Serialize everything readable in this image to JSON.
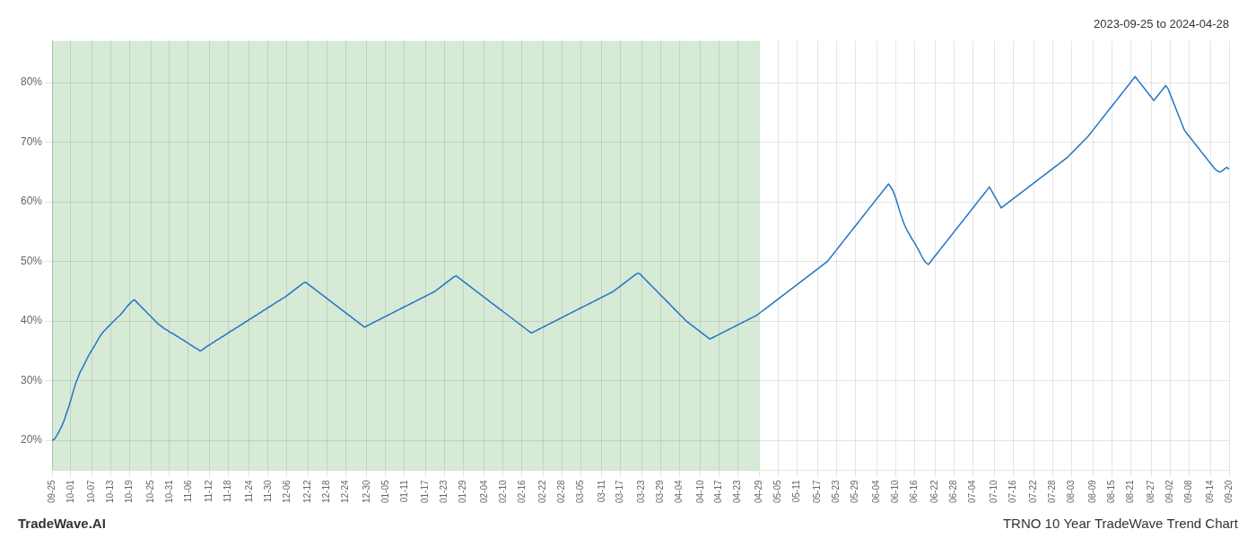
{
  "chart_data": {
    "type": "line",
    "title": "2023-09-25 to 2024-04-28",
    "annotations": [
      "TradeWave.AI",
      "TRNO 10 Year TradeWave Trend Chart"
    ],
    "categories": [
      "09-25",
      null,
      null,
      null,
      null,
      null,
      null,
      null,
      "10-01",
      null,
      null,
      null,
      null,
      null,
      null,
      null,
      null,
      "10-07",
      null,
      null,
      null,
      null,
      null,
      null,
      null,
      "10-13",
      null,
      null,
      null,
      null,
      null,
      null,
      null,
      "10-19",
      null,
      null,
      null,
      null,
      null,
      null,
      null,
      null,
      "10-25",
      null,
      null,
      null,
      null,
      null,
      null,
      null,
      "10-31",
      null,
      null,
      null,
      null,
      null,
      null,
      null,
      "11-06",
      null,
      null,
      null,
      null,
      null,
      null,
      null,
      null,
      "11-12",
      null,
      null,
      null,
      null,
      null,
      null,
      null,
      "11-18",
      null,
      null,
      null,
      null,
      null,
      null,
      null,
      null,
      "11-24",
      null,
      null,
      null,
      null,
      null,
      null,
      null,
      "11-30",
      null,
      null,
      null,
      null,
      null,
      null,
      null,
      "12-06",
      null,
      null,
      null,
      null,
      null,
      null,
      null,
      null,
      "12-12",
      null,
      null,
      null,
      null,
      null,
      null,
      null,
      "12-18",
      null,
      null,
      null,
      null,
      null,
      null,
      null,
      "12-24",
      null,
      null,
      null,
      null,
      null,
      null,
      null,
      null,
      "12-30",
      null,
      null,
      null,
      null,
      null,
      null,
      null,
      "01-05",
      null,
      null,
      null,
      null,
      null,
      null,
      null,
      "01-11",
      null,
      null,
      null,
      null,
      null,
      null,
      null,
      null,
      "01-17",
      null,
      null,
      null,
      null,
      null,
      null,
      null,
      "01-23",
      null,
      null,
      null,
      null,
      null,
      null,
      null,
      "01-29",
      null,
      null,
      null,
      null,
      null,
      null,
      null,
      null,
      "02-04",
      null,
      null,
      null,
      null,
      null,
      null,
      null,
      "02-10",
      null,
      null,
      null,
      null,
      null,
      null,
      null,
      "02-16",
      null,
      null,
      null,
      null,
      null,
      null,
      null,
      null,
      "02-22",
      null,
      null,
      null,
      null,
      null,
      null,
      null,
      "02-28",
      null,
      null,
      null,
      null,
      null,
      null,
      null,
      "03-05",
      null,
      null,
      null,
      null,
      null,
      null,
      null,
      null,
      "03-11",
      null,
      null,
      null,
      null,
      null,
      null,
      null,
      "03-17",
      null,
      null,
      null,
      null,
      null,
      null,
      null,
      null,
      "03-23",
      null,
      null,
      null,
      null,
      null,
      null,
      null,
      "03-29",
      null,
      null,
      null,
      null,
      null,
      null,
      null,
      "04-04",
      null,
      null,
      null,
      null,
      null,
      null,
      null,
      null,
      "04-10",
      null,
      null,
      null,
      null,
      null,
      null,
      null,
      "04-17",
      null,
      null,
      null,
      null,
      null,
      null,
      null,
      "04-23",
      null,
      null,
      null,
      null,
      null,
      null,
      null,
      null,
      "04-29",
      null,
      null,
      null,
      null,
      null,
      null,
      null,
      "05-05",
      null,
      null,
      null,
      null,
      null,
      null,
      null,
      "05-11",
      null,
      null,
      null,
      null,
      null,
      null,
      null,
      null,
      "05-17",
      null,
      null,
      null,
      null,
      null,
      null,
      null,
      "05-23",
      null,
      null,
      null,
      null,
      null,
      null,
      null,
      "05-29",
      null,
      null,
      null,
      null,
      null,
      null,
      null,
      null,
      "06-04",
      null,
      null,
      null,
      null,
      null,
      null,
      null,
      "06-10",
      null,
      null,
      null,
      null,
      null,
      null,
      null,
      "06-16",
      null,
      null,
      null,
      null,
      null,
      null,
      null,
      null,
      "06-22",
      null,
      null,
      null,
      null,
      null,
      null,
      null,
      "06-28",
      null,
      null,
      null,
      null,
      null,
      null,
      null,
      "07-04",
      null,
      null,
      null,
      null,
      null,
      null,
      null,
      null,
      "07-10",
      null,
      null,
      null,
      null,
      null,
      null,
      null,
      "07-16",
      null,
      null,
      null,
      null,
      null,
      null,
      null,
      null,
      "07-22",
      null,
      null,
      null,
      null,
      null,
      null,
      null,
      "07-28",
      null,
      null,
      null,
      null,
      null,
      null,
      null,
      "08-03",
      null,
      null,
      null,
      null,
      null,
      null,
      null,
      null,
      "08-09",
      null,
      null,
      null,
      null,
      null,
      null,
      null,
      "08-15",
      null,
      null,
      null,
      null,
      null,
      null,
      null,
      "08-21",
      null,
      null,
      null,
      null,
      null,
      null,
      null,
      null,
      "08-27",
      null,
      null,
      null,
      null,
      null,
      null,
      null,
      "09-02",
      null,
      null,
      null,
      null,
      null,
      null,
      null,
      "09-08",
      null,
      null,
      null,
      null,
      null,
      null,
      null,
      null,
      "09-14",
      null,
      null,
      null,
      null,
      null,
      null,
      null,
      "09-20"
    ],
    "color": "#2176c7",
    "values": [
      20.0,
      20.2,
      20.8,
      21.5,
      22.3,
      23.2,
      24.4,
      25.5,
      26.8,
      28.2,
      29.5,
      30.5,
      31.5,
      32.2,
      33.0,
      33.8,
      34.5,
      35.2,
      35.8,
      36.5,
      37.2,
      37.8,
      38.3,
      38.7,
      39.1,
      39.5,
      39.9,
      40.3,
      40.7,
      41.0,
      41.5,
      42.0,
      42.5,
      42.9,
      43.3,
      43.6,
      43.2,
      42.8,
      42.4,
      42.0,
      41.6,
      41.2,
      40.8,
      40.4,
      40.0,
      39.6,
      39.3,
      39.0,
      38.7,
      38.5,
      38.2,
      38.0,
      37.8,
      37.5,
      37.3,
      37.0,
      36.8,
      36.5,
      36.3,
      36.0,
      35.8,
      35.5,
      35.3,
      35.0,
      35.2,
      35.5,
      35.8,
      36.0,
      36.3,
      36.5,
      36.8,
      37.0,
      37.3,
      37.5,
      37.8,
      38.0,
      38.3,
      38.5,
      38.8,
      39.0,
      39.3,
      39.5,
      39.8,
      40.0,
      40.3,
      40.5,
      40.8,
      41.0,
      41.3,
      41.5,
      41.8,
      42.0,
      42.3,
      42.5,
      42.8,
      43.0,
      43.3,
      43.5,
      43.8,
      44.0,
      44.3,
      44.6,
      44.9,
      45.2,
      45.5,
      45.8,
      46.1,
      46.4,
      46.5,
      46.2,
      45.9,
      45.6,
      45.3,
      45.0,
      44.7,
      44.4,
      44.1,
      43.8,
      43.5,
      43.2,
      42.9,
      42.6,
      42.3,
      42.0,
      41.7,
      41.4,
      41.1,
      40.8,
      40.5,
      40.2,
      39.9,
      39.6,
      39.3,
      39.0,
      39.2,
      39.4,
      39.6,
      39.8,
      40.0,
      40.2,
      40.4,
      40.6,
      40.8,
      41.0,
      41.2,
      41.4,
      41.6,
      41.8,
      42.0,
      42.2,
      42.4,
      42.6,
      42.8,
      43.0,
      43.2,
      43.4,
      43.6,
      43.8,
      44.0,
      44.2,
      44.4,
      44.6,
      44.8,
      45.0,
      45.3,
      45.6,
      45.9,
      46.2,
      46.5,
      46.8,
      47.1,
      47.4,
      47.6,
      47.3,
      47.0,
      46.7,
      46.4,
      46.1,
      45.8,
      45.5,
      45.2,
      44.9,
      44.6,
      44.3,
      44.0,
      43.7,
      43.4,
      43.1,
      42.8,
      42.5,
      42.2,
      41.9,
      41.6,
      41.3,
      41.0,
      40.7,
      40.4,
      40.1,
      39.8,
      39.5,
      39.2,
      38.9,
      38.6,
      38.3,
      38.0,
      38.2,
      38.4,
      38.6,
      38.8,
      39.0,
      39.2,
      39.4,
      39.6,
      39.8,
      40.0,
      40.2,
      40.4,
      40.6,
      40.8,
      41.0,
      41.2,
      41.4,
      41.6,
      41.8,
      42.0,
      42.2,
      42.4,
      42.6,
      42.8,
      43.0,
      43.2,
      43.4,
      43.6,
      43.8,
      44.0,
      44.2,
      44.4,
      44.6,
      44.8,
      45.0,
      45.3,
      45.6,
      45.9,
      46.2,
      46.5,
      46.8,
      47.1,
      47.4,
      47.7,
      48.0,
      48.0,
      47.6,
      47.2,
      46.8,
      46.4,
      46.0,
      45.6,
      45.2,
      44.8,
      44.4,
      44.0,
      43.6,
      43.2,
      42.8,
      42.4,
      42.0,
      41.6,
      41.2,
      40.8,
      40.4,
      40.0,
      39.7,
      39.4,
      39.1,
      38.8,
      38.5,
      38.2,
      37.9,
      37.6,
      37.3,
      37.0,
      37.2,
      37.4,
      37.6,
      37.8,
      38.0,
      38.2,
      38.4,
      38.6,
      38.8,
      39.0,
      39.2,
      39.4,
      39.6,
      39.8,
      40.0,
      40.2,
      40.4,
      40.6,
      40.8,
      41.0,
      41.3,
      41.6,
      41.9,
      42.2,
      42.5,
      42.8,
      43.1,
      43.4,
      43.7,
      44.0,
      44.3,
      44.6,
      44.9,
      45.2,
      45.5,
      45.8,
      46.1,
      46.4,
      46.7,
      47.0,
      47.3,
      47.6,
      47.9,
      48.2,
      48.5,
      48.8,
      49.1,
      49.4,
      49.7,
      50.0,
      50.5,
      51.0,
      51.5,
      52.0,
      52.5,
      53.0,
      53.5,
      54.0,
      54.5,
      55.0,
      55.5,
      56.0,
      56.5,
      57.0,
      57.5,
      58.0,
      58.5,
      59.0,
      59.5,
      60.0,
      60.5,
      61.0,
      61.5,
      62.0,
      62.5,
      63.0,
      62.5,
      61.8,
      60.8,
      59.5,
      58.2,
      57.0,
      56.0,
      55.2,
      54.5,
      53.8,
      53.2,
      52.5,
      51.8,
      51.0,
      50.3,
      49.8,
      49.5,
      50.0,
      50.5,
      51.0,
      51.5,
      52.0,
      52.5,
      53.0,
      53.5,
      54.0,
      54.5,
      55.0,
      55.5,
      56.0,
      56.5,
      57.0,
      57.5,
      58.0,
      58.5,
      59.0,
      59.5,
      60.0,
      60.5,
      61.0,
      61.5,
      62.0,
      62.5,
      61.8,
      61.1,
      60.4,
      59.7,
      59.0,
      59.3,
      59.6,
      59.9,
      60.2,
      60.5,
      60.8,
      61.1,
      61.4,
      61.7,
      62.0,
      62.3,
      62.6,
      62.9,
      63.2,
      63.5,
      63.8,
      64.1,
      64.4,
      64.7,
      65.0,
      65.3,
      65.6,
      65.9,
      66.2,
      66.5,
      66.8,
      67.1,
      67.4,
      67.8,
      68.2,
      68.6,
      69.0,
      69.4,
      69.8,
      70.2,
      70.6,
      71.0,
      71.5,
      72.0,
      72.5,
      73.0,
      73.5,
      74.0,
      74.5,
      75.0,
      75.5,
      76.0,
      76.5,
      77.0,
      77.5,
      78.0,
      78.5,
      79.0,
      79.5,
      80.0,
      80.5,
      81.0,
      80.5,
      80.0,
      79.5,
      79.0,
      78.5,
      78.0,
      77.5,
      77.0,
      77.5,
      78.0,
      78.5,
      79.0,
      79.5,
      79.0,
      78.0,
      77.0,
      76.0,
      75.0,
      74.0,
      73.0,
      72.0,
      71.5,
      71.0,
      70.5,
      70.0,
      69.5,
      69.0,
      68.5,
      68.0,
      67.5,
      67.0,
      66.5,
      66.0,
      65.5,
      65.2,
      65.0,
      65.2,
      65.5,
      65.8,
      65.5
    ],
    "shaded_region": {
      "end": "04-29",
      "color": "#d6ead6"
    },
    "ylim": [
      15,
      87
    ],
    "yticks": [
      {
        "value": 20,
        "label": "20%"
      },
      {
        "value": 30,
        "label": "30%"
      },
      {
        "value": 40,
        "label": "40%"
      },
      {
        "value": 50,
        "label": "50%"
      },
      {
        "value": 60,
        "label": "60%"
      },
      {
        "value": 70,
        "label": "70%"
      },
      {
        "value": 80,
        "label": "80%"
      }
    ],
    "grid": true
  }
}
